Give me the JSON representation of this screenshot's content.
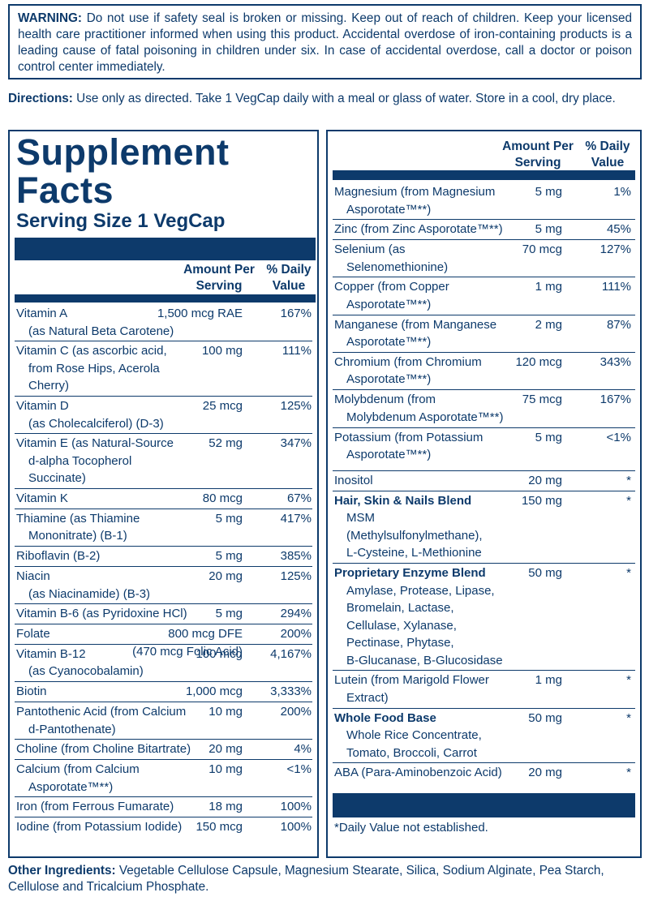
{
  "warning": {
    "label": "WARNING:",
    "text": "Do not use if safety seal is broken or missing. Keep out of reach of children. Keep your licensed health care practitioner informed when using this product. Accidental overdose of iron-containing products is a leading cause of fatal poisoning in children under six. In case of accidental overdose, call a doctor or poison control center immediately."
  },
  "directions": {
    "label": "Directions:",
    "text": "Use only as directed. Take 1 VegCap daily with a meal or glass of water. Store in a cool, dry place."
  },
  "supplement_facts": {
    "title": "Supplement\nFacts",
    "serving_size": "Serving Size 1 VegCap",
    "column_headers": {
      "amount": "Amount Per\nServing",
      "daily_value": "% Daily\nValue"
    },
    "left_rows": [
      {
        "name": "Vitamin A\n(as Natural Beta Carotene)",
        "amount": "1,500 mcg RAE",
        "dv": "167%"
      },
      {
        "name": "Vitamin C (as ascorbic acid,\nfrom Rose Hips, Acerola\nCherry)",
        "amount": "100 mg",
        "dv": "111%"
      },
      {
        "name": "Vitamin D\n(as Cholecalciferol) (D-3)",
        "amount": "25 mcg",
        "dv": "125%"
      },
      {
        "name": "Vitamin E (as Natural-Source\nd-alpha Tocopherol\nSuccinate)",
        "amount": "52 mg",
        "dv": "347%"
      },
      {
        "name": "Vitamin K",
        "amount": "80 mcg",
        "dv": "67%"
      },
      {
        "name": "Thiamine (as Thiamine\nMononitrate) (B-1)",
        "amount": "5 mg",
        "dv": "417%"
      },
      {
        "name": "Riboflavin (B-2)",
        "amount": "5 mg",
        "dv": "385%"
      },
      {
        "name": "Niacin\n(as Niacinamide) (B-3)",
        "amount": "20 mg",
        "dv": "125%"
      },
      {
        "name": "Vitamin B-6 (as Pyridoxine HCl)",
        "amount": "5 mg",
        "dv": "294%"
      },
      {
        "name": "Folate",
        "amount": "800 mcg DFE\n(470 mcg Folic Acid)",
        "dv": "200%"
      },
      {
        "name": "Vitamin B-12\n(as Cyanocobalamin)",
        "amount": "100 mcg",
        "dv": "4,167%"
      },
      {
        "name": "Biotin",
        "amount": "1,000 mcg",
        "dv": "3,333%"
      },
      {
        "name": "Pantothenic Acid (from Calcium\nd-Pantothenate)",
        "amount": "10 mg",
        "dv": "200%"
      },
      {
        "name": "Choline (from Choline Bitartrate)",
        "amount": "20 mg",
        "dv": "4%"
      },
      {
        "name": "Calcium (from Calcium\nAsporotate™**)",
        "amount": "10 mg",
        "dv": "<1%"
      },
      {
        "name": "Iron (from Ferrous Fumarate)",
        "amount": "18 mg",
        "dv": "100%"
      },
      {
        "name": "Iodine (from Potassium Iodide)",
        "amount": "150 mcg",
        "dv": "100%"
      }
    ],
    "right_minerals": [
      {
        "name": "Magnesium (from Magnesium\nAsporotate™**)",
        "amount": "5 mg",
        "dv": "1%"
      },
      {
        "name": "Zinc (from Zinc Asporotate™**)",
        "amount": "5 mg",
        "dv": "45%"
      },
      {
        "name": "Selenium (as\nSelenomethionine)",
        "amount": "70 mcg",
        "dv": "127%"
      },
      {
        "name": "Copper (from Copper\nAsporotate™**)",
        "amount": "1 mg",
        "dv": "111%"
      },
      {
        "name": "Manganese (from Manganese\nAsporotate™**)",
        "amount": "2 mg",
        "dv": "87%"
      },
      {
        "name": "Chromium (from Chromium\nAsporotate™**)",
        "amount": "120 mcg",
        "dv": "343%"
      },
      {
        "name": "Molybdenum (from\nMolybdenum Asporotate™**)",
        "amount": "75 mcg",
        "dv": "167%"
      },
      {
        "name": "Potassium (from Potassium\nAsporotate™**)",
        "amount": "5 mg",
        "dv": "<1%"
      }
    ],
    "right_other": [
      {
        "name": "Inositol",
        "amount": "20 mg",
        "dv": "*"
      },
      {
        "name": "Hair, Skin & Nails Blend",
        "components": "MSM\n(Methylsulfonylmethane),\nL-Cysteine, L-Methionine",
        "amount": "150 mg",
        "dv": "*"
      },
      {
        "name": "Proprietary Enzyme Blend",
        "components": "Amylase, Protease, Lipase,\nBromelain, Lactase,\nCellulase, Xylanase,\nPectinase, Phytase,\nB-Glucanase, B-Glucosidase",
        "amount": "50 mg",
        "dv": "*"
      },
      {
        "name": "Lutein (from Marigold Flower\nExtract)",
        "amount": "1 mg",
        "dv": "*"
      },
      {
        "name": "Whole Food Base",
        "components": "Whole Rice Concentrate,\nTomato, Broccoli, Carrot",
        "amount": "50 mg",
        "dv": "*"
      },
      {
        "name": "ABA (Para-Aminobenzoic Acid)",
        "amount": "20 mg",
        "dv": "*"
      }
    ],
    "footnote": "*Daily Value not established."
  },
  "other_ingredients": {
    "label": "Other Ingredients:",
    "text": "Vegetable Cellulose Capsule, Magnesium Stearate, Silica, Sodium Alginate, Pea Starch, Cellulose and Tricalcium Phosphate."
  }
}
